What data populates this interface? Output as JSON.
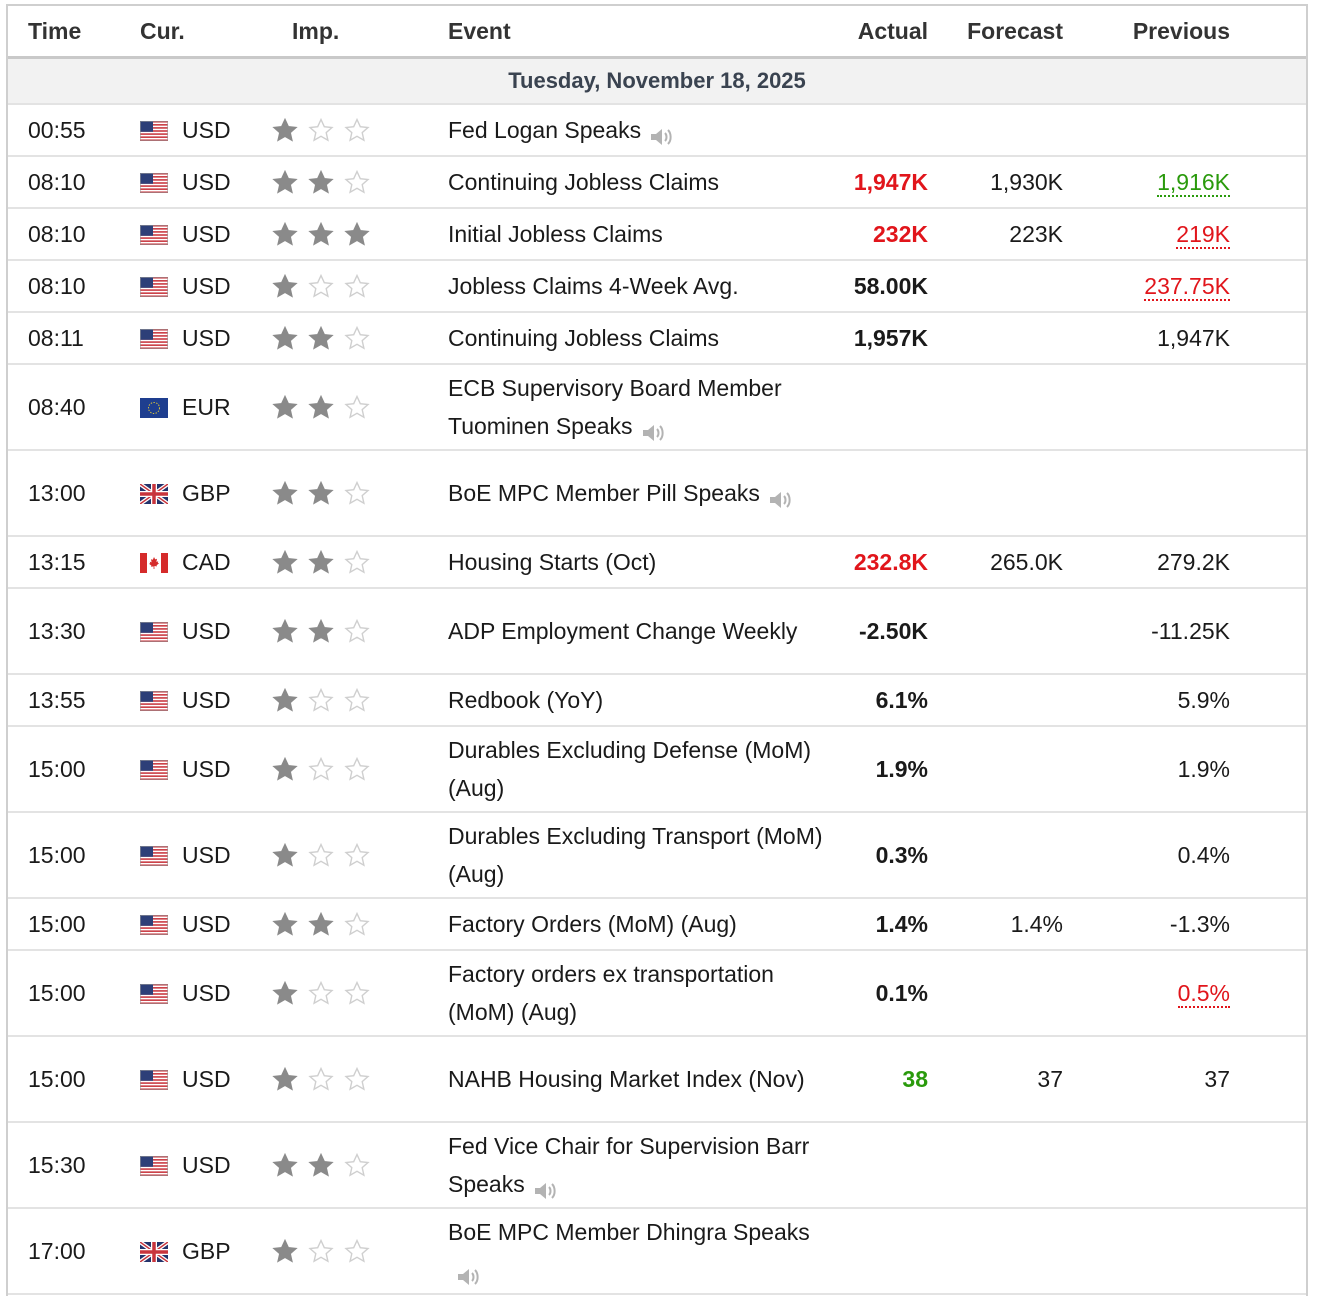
{
  "headers": {
    "time": "Time",
    "cur": "Cur.",
    "imp": "Imp.",
    "event": "Event",
    "actual": "Actual",
    "forecast": "Forecast",
    "previous": "Previous"
  },
  "date": "Tuesday, November 18, 2025",
  "colors": {
    "negative": "#e1151b",
    "positive": "#2a9a0c",
    "star_on": "#8a8a8a",
    "star_off": "#cfcfcf"
  },
  "rows": [
    {
      "time": "00:55",
      "flag": "us-flag-icon",
      "cur": "USD",
      "stars": 1,
      "event": "Fed Logan Speaks",
      "speaker": true,
      "actual": "",
      "actual_color": "",
      "forecast": "",
      "previous": "",
      "previous_color": ""
    },
    {
      "time": "08:10",
      "flag": "us-flag-icon",
      "cur": "USD",
      "stars": 2,
      "event": "Continuing Jobless Claims",
      "speaker": false,
      "actual": "1,947K",
      "actual_color": "red",
      "forecast": "1,930K",
      "previous": "1,916K",
      "previous_color": "green"
    },
    {
      "time": "08:10",
      "flag": "us-flag-icon",
      "cur": "USD",
      "stars": 3,
      "event": "Initial Jobless Claims",
      "speaker": false,
      "actual": "232K",
      "actual_color": "red",
      "forecast": "223K",
      "previous": "219K",
      "previous_color": "red"
    },
    {
      "time": "08:10",
      "flag": "us-flag-icon",
      "cur": "USD",
      "stars": 1,
      "event": "Jobless Claims 4-Week Avg.",
      "speaker": false,
      "actual": "58.00K",
      "actual_color": "",
      "forecast": "",
      "previous": "237.75K",
      "previous_color": "red"
    },
    {
      "time": "08:11",
      "flag": "us-flag-icon",
      "cur": "USD",
      "stars": 2,
      "event": "Continuing Jobless Claims",
      "speaker": false,
      "actual": "1,957K",
      "actual_color": "",
      "forecast": "",
      "previous": "1,947K",
      "previous_color": ""
    },
    {
      "time": "08:40",
      "flag": "eu-flag-icon",
      "cur": "EUR",
      "stars": 2,
      "event": "ECB Supervisory Board Member Tuominen Speaks",
      "speaker": true,
      "actual": "",
      "actual_color": "",
      "forecast": "",
      "previous": "",
      "previous_color": ""
    },
    {
      "time": "13:00",
      "flag": "uk-flag-icon",
      "cur": "GBP",
      "stars": 2,
      "event": "BoE MPC Member Pill Speaks",
      "speaker": true,
      "actual": "",
      "actual_color": "",
      "forecast": "",
      "previous": "",
      "previous_color": ""
    },
    {
      "time": "13:15",
      "flag": "ca-flag-icon",
      "cur": "CAD",
      "stars": 2,
      "event": "Housing Starts (Oct)",
      "speaker": false,
      "actual": "232.8K",
      "actual_color": "red",
      "forecast": "265.0K",
      "previous": "279.2K",
      "previous_color": ""
    },
    {
      "time": "13:30",
      "flag": "us-flag-icon",
      "cur": "USD",
      "stars": 2,
      "event": "ADP Employment Change Weekly",
      "speaker": false,
      "actual": "-2.50K",
      "actual_color": "",
      "forecast": "",
      "previous": "-11.25K",
      "previous_color": ""
    },
    {
      "time": "13:55",
      "flag": "us-flag-icon",
      "cur": "USD",
      "stars": 1,
      "event": "Redbook (YoY)",
      "speaker": false,
      "actual": "6.1%",
      "actual_color": "",
      "forecast": "",
      "previous": "5.9%",
      "previous_color": ""
    },
    {
      "time": "15:00",
      "flag": "us-flag-icon",
      "cur": "USD",
      "stars": 1,
      "event": "Durables Excluding Defense (MoM) (Aug)",
      "speaker": false,
      "actual": "1.9%",
      "actual_color": "",
      "forecast": "",
      "previous": "1.9%",
      "previous_color": ""
    },
    {
      "time": "15:00",
      "flag": "us-flag-icon",
      "cur": "USD",
      "stars": 1,
      "event": "Durables Excluding Transport (MoM) (Aug)",
      "speaker": false,
      "actual": "0.3%",
      "actual_color": "",
      "forecast": "",
      "previous": "0.4%",
      "previous_color": ""
    },
    {
      "time": "15:00",
      "flag": "us-flag-icon",
      "cur": "USD",
      "stars": 2,
      "event": "Factory Orders (MoM) (Aug)",
      "speaker": false,
      "actual": "1.4%",
      "actual_color": "",
      "forecast": "1.4%",
      "previous": "-1.3%",
      "previous_color": ""
    },
    {
      "time": "15:00",
      "flag": "us-flag-icon",
      "cur": "USD",
      "stars": 1,
      "event": "Factory orders ex transportation (MoM) (Aug)",
      "speaker": false,
      "actual": "0.1%",
      "actual_color": "",
      "forecast": "",
      "previous": "0.5%",
      "previous_color": "red"
    },
    {
      "time": "15:00",
      "flag": "us-flag-icon",
      "cur": "USD",
      "stars": 1,
      "event": "NAHB Housing Market Index (Nov)",
      "speaker": false,
      "actual": "38",
      "actual_color": "green",
      "forecast": "37",
      "previous": "37",
      "previous_color": ""
    },
    {
      "time": "15:30",
      "flag": "us-flag-icon",
      "cur": "USD",
      "stars": 2,
      "event": "Fed Vice Chair for Supervision Barr Speaks",
      "speaker": true,
      "actual": "",
      "actual_color": "",
      "forecast": "",
      "previous": "",
      "previous_color": ""
    },
    {
      "time": "17:00",
      "flag": "uk-flag-icon",
      "cur": "GBP",
      "stars": 1,
      "event": "BoE MPC Member Dhingra Speaks",
      "speaker": true,
      "actual": "",
      "actual_color": "",
      "forecast": "",
      "previous": "",
      "previous_color": ""
    }
  ]
}
